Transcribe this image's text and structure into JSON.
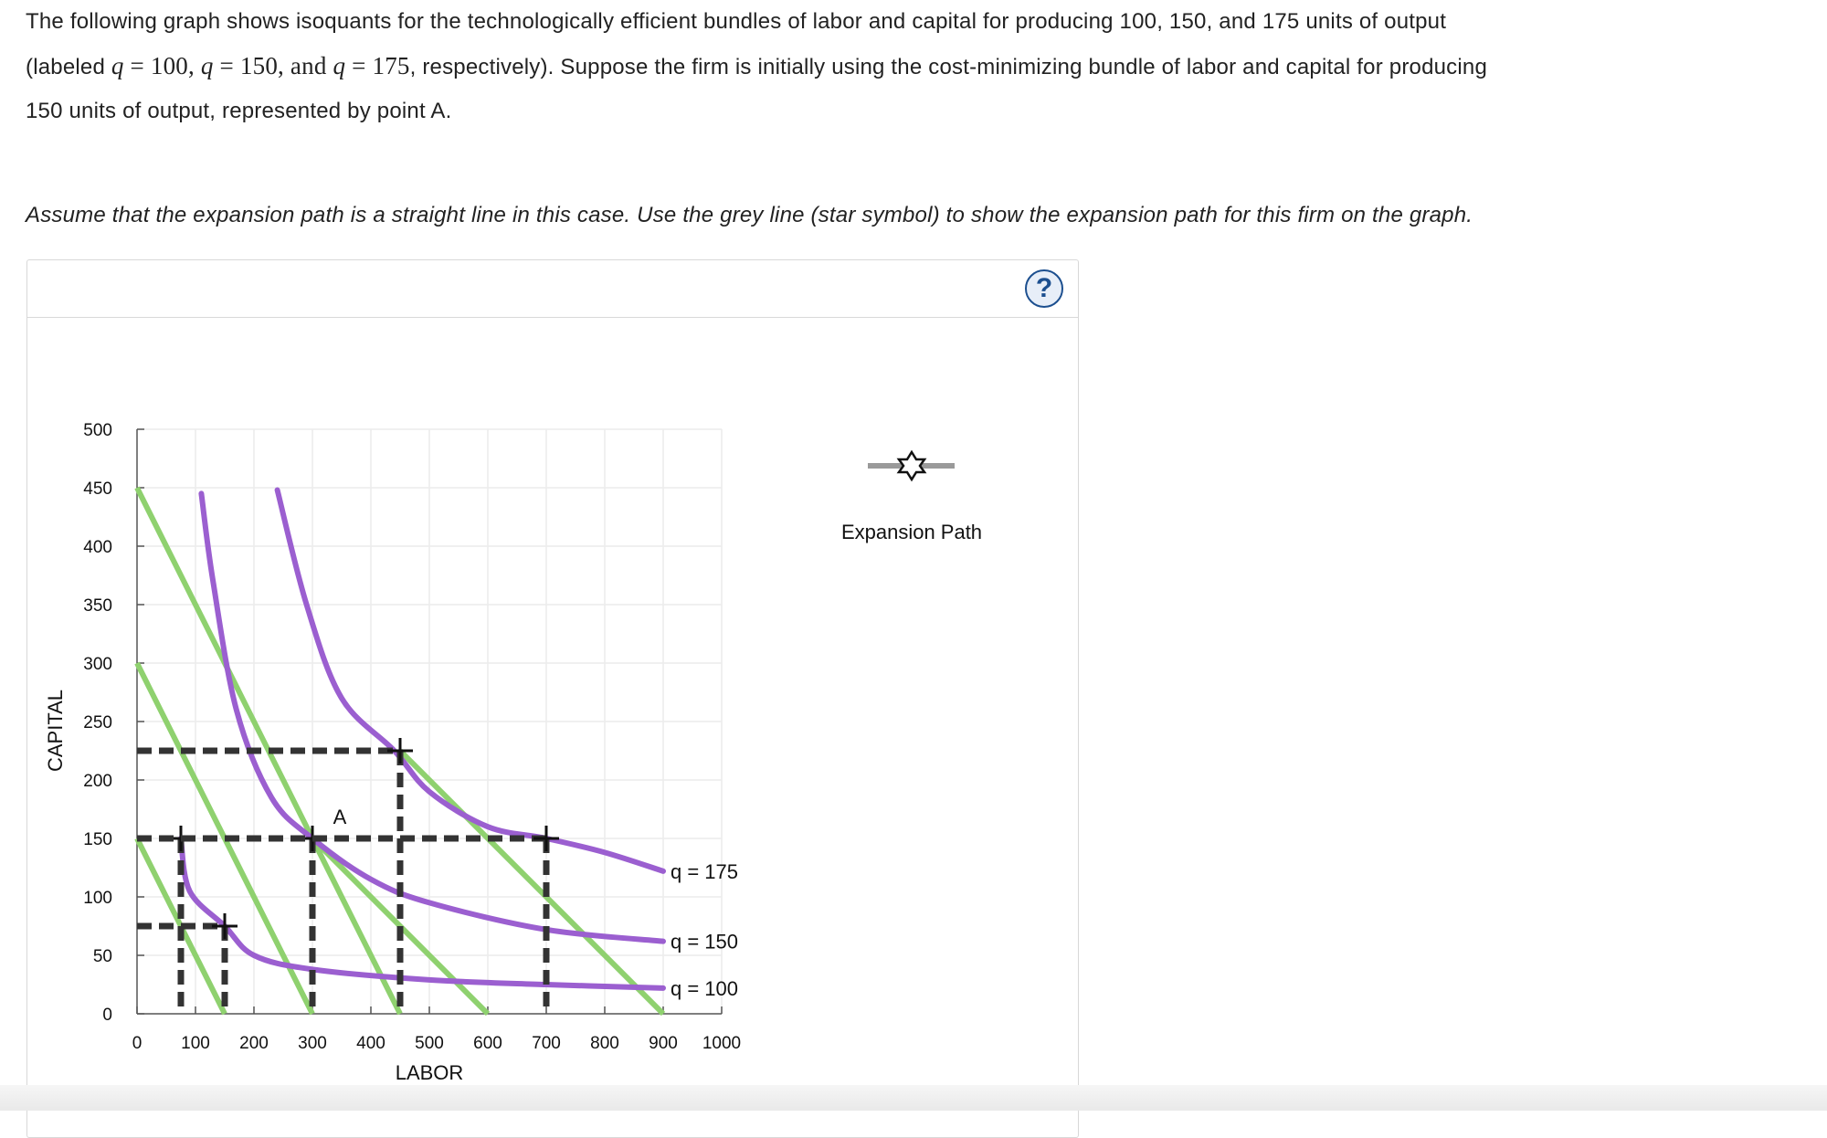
{
  "intro": {
    "part1": "The following graph shows isoquants for the technologically efficient bundles of labor and capital for producing 100, 150, and 175 units of output",
    "part2": "(labeled ",
    "q_var": "q",
    "eq_mid_1": " = 100, ",
    "eq_mid_2": " = 150, and ",
    "eq_mid_3": " = 175",
    "part3": ", respectively). Suppose the firm is initially using the cost-minimizing bundle of labor and capital for producing",
    "part4": "150 units of output, represented by point A."
  },
  "instruction": "Assume that the expansion path is a straight line in this case. Use the grey line (star symbol) to show the expansion path for this firm on the graph.",
  "help_icon": "?",
  "legend": {
    "tool_label": "Expansion Path",
    "tool_icon": "star-icon",
    "tool_color": "#9a9a9a"
  },
  "colors": {
    "isoquant": "#9b5fd0",
    "isocost": "#8fd16f",
    "dashed": "#333333",
    "grid": "#ececec"
  },
  "chart_data": {
    "type": "line",
    "xlabel": "LABOR",
    "ylabel": "CAPITAL",
    "xlim": [
      0,
      1000
    ],
    "ylim": [
      0,
      500
    ],
    "xticks": [
      "0",
      "100",
      "200",
      "300",
      "400",
      "500",
      "600",
      "700",
      "800",
      "900",
      "1000"
    ],
    "yticks": [
      "0",
      "50",
      "100",
      "150",
      "200",
      "250",
      "300",
      "350",
      "400",
      "450",
      "500"
    ],
    "grid": true,
    "isoquants": [
      {
        "label": "q = 100",
        "points": [
          [
            75,
            150
          ],
          [
            90,
            105
          ],
          [
            150,
            75
          ],
          [
            200,
            50
          ],
          [
            300,
            38
          ],
          [
            500,
            29
          ],
          [
            700,
            25
          ],
          [
            900,
            22
          ]
        ]
      },
      {
        "label": "q = 150",
        "points": [
          [
            110,
            445
          ],
          [
            130,
            370
          ],
          [
            170,
            260
          ],
          [
            230,
            185
          ],
          [
            300,
            150
          ],
          [
            400,
            115
          ],
          [
            500,
            95
          ],
          [
            700,
            72
          ],
          [
            900,
            62
          ]
        ]
      },
      {
        "label": "q = 175",
        "points": [
          [
            240,
            448
          ],
          [
            290,
            350
          ],
          [
            350,
            270
          ],
          [
            440,
            225
          ],
          [
            500,
            190
          ],
          [
            600,
            160
          ],
          [
            700,
            150
          ],
          [
            800,
            138
          ],
          [
            900,
            122
          ]
        ]
      }
    ],
    "isocosts": [
      {
        "points": [
          [
            0,
            150
          ],
          [
            150,
            0
          ]
        ]
      },
      {
        "points": [
          [
            0,
            300
          ],
          [
            300,
            0
          ]
        ]
      },
      {
        "points": [
          [
            0,
            450
          ],
          [
            450,
            0
          ]
        ]
      },
      {
        "points": [
          [
            450,
            225
          ],
          [
            900,
            0
          ]
        ]
      },
      {
        "points": [
          [
            300,
            150
          ],
          [
            600,
            0
          ]
        ]
      }
    ],
    "dashed_points": [
      {
        "x": 75,
        "y": 150
      },
      {
        "x": 150,
        "y": 75
      },
      {
        "x": 300,
        "y": 150
      },
      {
        "x": 450,
        "y": 225
      },
      {
        "x": 700,
        "y": 150
      }
    ],
    "point_labels": [
      {
        "label": "A",
        "x": 300,
        "y": 150
      }
    ]
  }
}
